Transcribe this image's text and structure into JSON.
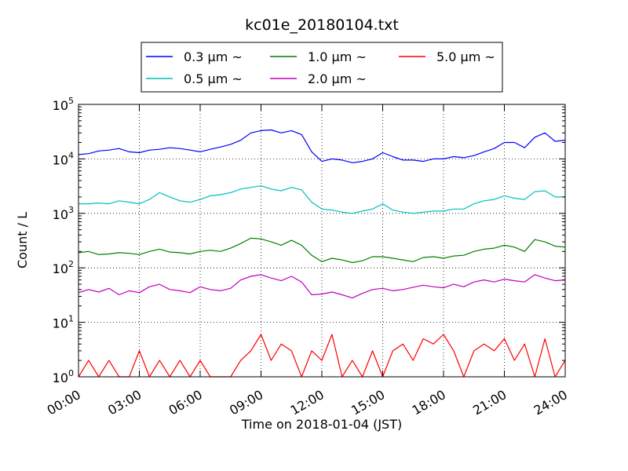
{
  "chart_data": {
    "type": "line",
    "title": "kc01e_20180104.txt",
    "xlabel": "Time on 2018-01-04 (JST)",
    "ylabel": "Count / L",
    "yscale": "log",
    "ylim": [
      1,
      100000
    ],
    "y_ticks": [
      {
        "value": 1,
        "base": "10",
        "exp": "0"
      },
      {
        "value": 10,
        "base": "10",
        "exp": "1"
      },
      {
        "value": 100,
        "base": "10",
        "exp": "2"
      },
      {
        "value": 1000,
        "base": "10",
        "exp": "3"
      },
      {
        "value": 10000,
        "base": "10",
        "exp": "4"
      },
      {
        "value": 100000,
        "base": "10",
        "exp": "5"
      }
    ],
    "x_ticks": [
      {
        "time": "00:00",
        "label": "00:00"
      },
      {
        "time": "03:00",
        "label": "03:00"
      },
      {
        "time": "06:00",
        "label": "06:00"
      },
      {
        "time": "09:00",
        "label": "09:00"
      },
      {
        "time": "12:00",
        "label": "12:00"
      },
      {
        "time": "15:00",
        "label": "15:00"
      },
      {
        "time": "18:00",
        "label": "18:00"
      },
      {
        "time": "21:00",
        "label": "21:00"
      },
      {
        "time": "24:00",
        "label": "24:00"
      }
    ],
    "xlim": [
      "00:00",
      "24:00"
    ],
    "grid": true,
    "legend_position": "top-center",
    "series": [
      {
        "name": "0.3 μm ~",
        "color": "#0000ff",
        "x": [
          "00:00",
          "00:30",
          "01:00",
          "01:30",
          "02:00",
          "02:30",
          "03:00",
          "03:30",
          "04:00",
          "04:30",
          "05:00",
          "05:30",
          "06:00",
          "06:30",
          "07:00",
          "07:30",
          "08:00",
          "08:30",
          "09:00",
          "09:30",
          "10:00",
          "10:30",
          "11:00",
          "11:30",
          "12:00",
          "12:30",
          "13:00",
          "13:30",
          "14:00",
          "14:30",
          "15:00",
          "15:30",
          "16:00",
          "16:30",
          "17:00",
          "17:30",
          "18:00",
          "18:30",
          "19:00",
          "19:30",
          "20:00",
          "20:30",
          "21:00",
          "21:30",
          "22:00",
          "22:30",
          "23:00",
          "23:30",
          "24:00"
        ],
        "y": [
          12000,
          12500,
          14000,
          14500,
          15500,
          13500,
          13000,
          14500,
          15000,
          16000,
          15500,
          14500,
          13500,
          15000,
          16500,
          18500,
          22000,
          30000,
          33000,
          34000,
          30000,
          33000,
          28000,
          13500,
          9000,
          10000,
          9500,
          8500,
          9000,
          10000,
          13000,
          11000,
          9500,
          9500,
          9000,
          10000,
          10000,
          11000,
          10500,
          11500,
          13500,
          15500,
          20000,
          20000,
          16000,
          25000,
          30000,
          21000,
          22000
        ]
      },
      {
        "name": "0.5 μm ~",
        "color": "#00bfbf",
        "x": [
          "00:00",
          "00:30",
          "01:00",
          "01:30",
          "02:00",
          "02:30",
          "03:00",
          "03:30",
          "04:00",
          "04:30",
          "05:00",
          "05:30",
          "06:00",
          "06:30",
          "07:00",
          "07:30",
          "08:00",
          "08:30",
          "09:00",
          "09:30",
          "10:00",
          "10:30",
          "11:00",
          "11:30",
          "12:00",
          "12:30",
          "13:00",
          "13:30",
          "14:00",
          "14:30",
          "15:00",
          "15:30",
          "16:00",
          "16:30",
          "17:00",
          "17:30",
          "18:00",
          "18:30",
          "19:00",
          "19:30",
          "20:00",
          "20:30",
          "21:00",
          "21:30",
          "22:00",
          "22:30",
          "23:00",
          "23:30",
          "24:00"
        ],
        "y": [
          1500,
          1500,
          1550,
          1500,
          1700,
          1600,
          1500,
          1800,
          2400,
          2000,
          1700,
          1600,
          1800,
          2100,
          2200,
          2400,
          2800,
          3000,
          3200,
          2800,
          2600,
          3000,
          2700,
          1600,
          1200,
          1150,
          1050,
          1000,
          1100,
          1200,
          1500,
          1150,
          1050,
          1000,
          1050,
          1100,
          1100,
          1200,
          1200,
          1500,
          1700,
          1800,
          2100,
          1900,
          1800,
          2500,
          2600,
          2000,
          2000
        ]
      },
      {
        "name": "1.0 μm ~",
        "color": "#008000",
        "x": [
          "00:00",
          "00:30",
          "01:00",
          "01:30",
          "02:00",
          "02:30",
          "03:00",
          "03:30",
          "04:00",
          "04:30",
          "05:00",
          "05:30",
          "06:00",
          "06:30",
          "07:00",
          "07:30",
          "08:00",
          "08:30",
          "09:00",
          "09:30",
          "10:00",
          "10:30",
          "11:00",
          "11:30",
          "12:00",
          "12:30",
          "13:00",
          "13:30",
          "14:00",
          "14:30",
          "15:00",
          "15:30",
          "16:00",
          "16:30",
          "17:00",
          "17:30",
          "18:00",
          "18:30",
          "19:00",
          "19:30",
          "20:00",
          "20:30",
          "21:00",
          "21:30",
          "22:00",
          "22:30",
          "23:00",
          "23:30",
          "24:00"
        ],
        "y": [
          190,
          200,
          175,
          180,
          190,
          185,
          175,
          200,
          220,
          195,
          190,
          180,
          200,
          210,
          200,
          230,
          280,
          350,
          340,
          300,
          260,
          320,
          260,
          170,
          130,
          150,
          140,
          125,
          135,
          160,
          160,
          150,
          140,
          130,
          155,
          160,
          150,
          165,
          170,
          200,
          220,
          230,
          260,
          240,
          200,
          330,
          300,
          250,
          240
        ]
      },
      {
        "name": "2.0 μm ~",
        "color": "#bf00bf",
        "x": [
          "00:00",
          "00:30",
          "01:00",
          "01:30",
          "02:00",
          "02:30",
          "03:00",
          "03:30",
          "04:00",
          "04:30",
          "05:00",
          "05:30",
          "06:00",
          "06:30",
          "07:00",
          "07:30",
          "08:00",
          "08:30",
          "09:00",
          "09:30",
          "10:00",
          "10:30",
          "11:00",
          "11:30",
          "12:00",
          "12:30",
          "13:00",
          "13:30",
          "14:00",
          "14:30",
          "15:00",
          "15:30",
          "16:00",
          "16:30",
          "17:00",
          "17:30",
          "18:00",
          "18:30",
          "19:00",
          "19:30",
          "20:00",
          "20:30",
          "21:00",
          "21:30",
          "22:00",
          "22:30",
          "23:00",
          "23:30",
          "24:00"
        ],
        "y": [
          35,
          40,
          36,
          42,
          32,
          38,
          35,
          45,
          50,
          40,
          38,
          35,
          45,
          40,
          38,
          42,
          60,
          70,
          75,
          65,
          58,
          70,
          55,
          32,
          33,
          36,
          32,
          28,
          34,
          40,
          42,
          38,
          40,
          44,
          48,
          45,
          43,
          50,
          45,
          55,
          60,
          55,
          62,
          58,
          55,
          75,
          65,
          58,
          60
        ]
      },
      {
        "name": "5.0 μm ~",
        "color": "#ff0000",
        "x": [
          "00:00",
          "00:30",
          "01:00",
          "01:30",
          "02:00",
          "02:30",
          "03:00",
          "03:30",
          "04:00",
          "04:30",
          "05:00",
          "05:30",
          "06:00",
          "06:30",
          "07:00",
          "07:30",
          "08:00",
          "08:30",
          "09:00",
          "09:30",
          "10:00",
          "10:30",
          "11:00",
          "11:30",
          "12:00",
          "12:30",
          "13:00",
          "13:30",
          "14:00",
          "14:30",
          "15:00",
          "15:30",
          "16:00",
          "16:30",
          "17:00",
          "17:30",
          "18:00",
          "18:30",
          "19:00",
          "19:30",
          "20:00",
          "20:30",
          "21:00",
          "21:30",
          "22:00",
          "22:30",
          "23:00",
          "23:30",
          "24:00"
        ],
        "y": [
          1,
          2,
          1,
          2,
          1,
          1,
          3,
          1,
          2,
          1,
          2,
          1,
          2,
          1,
          1,
          1,
          2,
          3,
          6,
          2,
          4,
          3,
          1,
          3,
          2,
          6,
          1,
          2,
          1,
          3,
          1,
          3,
          4,
          2,
          5,
          4,
          6,
          3,
          1,
          3,
          4,
          3,
          5,
          2,
          4,
          1,
          5,
          1,
          2
        ]
      }
    ]
  }
}
